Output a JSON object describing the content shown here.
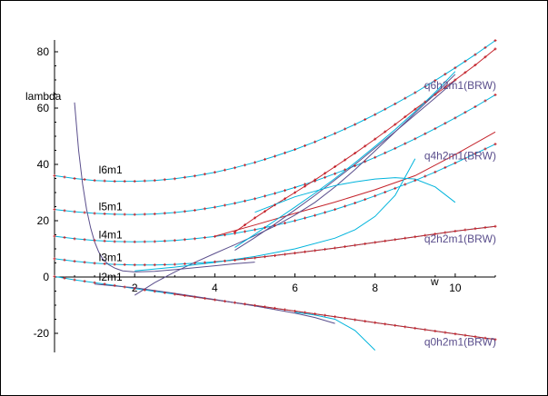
{
  "chart_data": {
    "type": "line",
    "title": "",
    "xlabel": "w",
    "ylabel": "lambda",
    "xlim": [
      0,
      11
    ],
    "ylim": [
      -25,
      85
    ],
    "x_ticks": [
      2,
      4,
      6,
      8,
      10
    ],
    "y_ticks": [
      -20,
      0,
      20,
      40,
      60,
      80
    ],
    "x_tick_labels": [
      "2",
      "4",
      "6",
      "8",
      "10"
    ],
    "y_tick_labels": [
      "-20",
      "0",
      "20",
      "40",
      "60",
      "80"
    ],
    "curve_labels": [
      {
        "text": "l6m1",
        "x": 0.65,
        "y": 38
      },
      {
        "text": "l5m1",
        "x": 0.65,
        "y": 25
      },
      {
        "text": "l4m1",
        "x": 0.65,
        "y": 15
      },
      {
        "text": "l3m1",
        "x": 0.65,
        "y": 7
      },
      {
        "text": "l2m1",
        "x": 0.65,
        "y": 0
      }
    ],
    "series_labels": [
      {
        "text": "q6h2m1(BRW)",
        "x": 9.0,
        "y": 68
      },
      {
        "text": "q4h2m1(BRW)",
        "x": 9.0,
        "y": 43
      },
      {
        "text": "q2h2m1(BRW)",
        "x": 9.0,
        "y": 13.5
      },
      {
        "text": "q0h2m1(BRW)",
        "x": 9.0,
        "y": -23
      }
    ],
    "series": [
      {
        "name": "l6m1",
        "color": "#00b4dc",
        "style": "line",
        "x": [
          0,
          0.5,
          1,
          1.5,
          2,
          2.5,
          3,
          3.5,
          4,
          4.5,
          5,
          5.5,
          6,
          6.5,
          7,
          7.5,
          8,
          8.5,
          9,
          9.5,
          10,
          10.5,
          11
        ],
        "y": [
          36.0,
          35.0,
          34.3,
          34.0,
          34.0,
          34.3,
          34.9,
          35.9,
          37.2,
          38.8,
          40.7,
          42.9,
          45.3,
          48.0,
          51.0,
          54.2,
          57.7,
          61.5,
          65.5,
          69.8,
          74.3,
          79.0,
          84.0
        ]
      },
      {
        "name": "l5m1",
        "color": "#00b4dc",
        "style": "line",
        "x": [
          0,
          0.5,
          1,
          1.5,
          2,
          2.5,
          3,
          3.5,
          4,
          4.5,
          5,
          5.5,
          6,
          6.5,
          7,
          7.5,
          8,
          8.5,
          9,
          9.5,
          10,
          10.5,
          11
        ],
        "y": [
          24.0,
          23.2,
          22.6,
          22.3,
          22.2,
          22.4,
          22.9,
          23.7,
          24.8,
          26.2,
          27.8,
          29.7,
          31.8,
          34.1,
          36.7,
          39.5,
          42.5,
          45.7,
          49.1,
          52.7,
          56.5,
          60.5,
          64.7
        ]
      },
      {
        "name": "l4m1",
        "color": "#00b4dc",
        "style": "line",
        "x": [
          0,
          0.5,
          1,
          1.5,
          2,
          2.5,
          3,
          3.5,
          4,
          4.5,
          5,
          5.5,
          6,
          6.5,
          7,
          7.5,
          8,
          8.5,
          9,
          9.5,
          10,
          10.5,
          11
        ],
        "y": [
          14.5,
          13.6,
          13.0,
          12.6,
          12.5,
          12.6,
          13.0,
          13.6,
          14.4,
          15.5,
          16.8,
          18.3,
          20.0,
          21.9,
          24.0,
          26.3,
          28.8,
          31.5,
          34.3,
          37.3,
          40.5,
          43.8,
          47.2
        ]
      },
      {
        "name": "l3m1",
        "color": "#00b4dc",
        "style": "line",
        "x": [
          0,
          0.5,
          1,
          1.5,
          2,
          2.5,
          3,
          3.5,
          4,
          4.5,
          5,
          5.5,
          6,
          6.5,
          7,
          7.5,
          8,
          8.5,
          9,
          9.5,
          10,
          10.5,
          11
        ],
        "y": [
          6.5,
          5.6,
          4.9,
          4.5,
          4.3,
          4.3,
          4.5,
          4.9,
          5.4,
          6.0,
          6.8,
          7.6,
          8.5,
          9.4,
          10.3,
          11.3,
          12.3,
          13.3,
          14.3,
          15.3,
          16.3,
          17.2,
          18.0
        ]
      },
      {
        "name": "l2m1",
        "color": "#00b4dc",
        "style": "line",
        "x": [
          0,
          0.5,
          1,
          1.5,
          2,
          2.5,
          3,
          3.5,
          4,
          4.5,
          5,
          5.5,
          6,
          6.5,
          7,
          7.5,
          8,
          8.5,
          9,
          9.5,
          10,
          10.5,
          11
        ],
        "y": [
          0.2,
          -1.0,
          -2.0,
          -3.0,
          -4.1,
          -5.1,
          -6.1,
          -7.1,
          -8.1,
          -9.1,
          -10.1,
          -11.1,
          -12.1,
          -13.1,
          -14.1,
          -15.2,
          -16.2,
          -17.2,
          -18.2,
          -19.2,
          -20.2,
          -21.2,
          -22.2
        ]
      },
      {
        "name": "q6h2m1(BRW)",
        "color": "#c4232b",
        "style": "line",
        "x": [
          4.5,
          5,
          5.5,
          6,
          6.5,
          7,
          7.5,
          8,
          8.5,
          9,
          9.5,
          10,
          10.5,
          11
        ],
        "y": [
          16,
          21,
          25.6,
          30.0,
          34.5,
          39.2,
          44.0,
          49.0,
          54.2,
          59.6,
          64.8,
          70.0,
          75.3,
          81.0
        ]
      },
      {
        "name": "q4h2m1(BRW)",
        "color": "#c4232b",
        "style": "line",
        "x": [
          4,
          5,
          6,
          7,
          8,
          9,
          10,
          11
        ],
        "y": [
          14.5,
          18.5,
          22.6,
          26.6,
          31.0,
          36.0,
          43.5,
          51.5
        ]
      },
      {
        "name": "q2h2m1(BRW)",
        "color": "#c4232b",
        "style": "line",
        "x": [
          4,
          5,
          6,
          7,
          8,
          9,
          10,
          11
        ],
        "y": [
          5.4,
          6.8,
          8.5,
          10.3,
          12.3,
          14.3,
          16.3,
          18.0
        ]
      },
      {
        "name": "q0h2m1(BRW)",
        "color": "#c4232b",
        "style": "line",
        "x": [
          3,
          4,
          5,
          6,
          7,
          8,
          9,
          10,
          11
        ],
        "y": [
          -6.1,
          -8.1,
          -10.1,
          -12.1,
          -14.1,
          -16.2,
          -18.2,
          -20.2,
          -22.2
        ]
      },
      {
        "name": "",
        "color": "#5a4e8c",
        "style": "line",
        "x": [
          0.5,
          0.6,
          0.7,
          0.8,
          0.9,
          1.0,
          1.1,
          1.2,
          1.35,
          1.5,
          1.7,
          2.0,
          2.5,
          3,
          3.5,
          4,
          4.5,
          5
        ],
        "y": [
          62,
          45,
          33,
          24,
          17.5,
          12.5,
          9.0,
          6.5,
          4.4,
          3.2,
          2.2,
          1.8,
          2.0,
          2.6,
          3.3,
          4.0,
          4.7,
          5.3
        ]
      },
      {
        "name": "",
        "color": "#5a4e8c",
        "style": "line",
        "x": [
          2,
          2.5,
          3,
          3.5,
          4,
          4.5,
          5,
          5.5,
          6,
          6.5,
          7,
          7.5,
          8,
          8.5,
          9,
          9.5,
          10
        ],
        "y": [
          -6.5,
          -2.0,
          1.8,
          5.2,
          8.4,
          11.5,
          14.7,
          18.1,
          22.0,
          26.5,
          32.0,
          38.2,
          44.8,
          51.5,
          58.3,
          65.0,
          72.0
        ]
      },
      {
        "name": "",
        "color": "#5a4e8c",
        "style": "line",
        "x": [
          4.5,
          5,
          5.5,
          6,
          6.5,
          7,
          7.5,
          8,
          8.5,
          9,
          9.5,
          10
        ],
        "y": [
          9.5,
          14.0,
          18.8,
          23.8,
          29.0,
          34.5,
          40.0,
          45.8,
          51.6,
          57.6,
          63.6,
          69.8
        ]
      },
      {
        "name": "",
        "color": "#5a4e8c",
        "style": "line",
        "x": [
          1,
          2,
          3,
          4,
          5,
          6,
          6.5,
          7
        ],
        "y": [
          -2.5,
          -3.8,
          -5.8,
          -8.0,
          -10.3,
          -12.8,
          -14.4,
          -16.5
        ]
      },
      {
        "name": "",
        "color": "#00b4dc",
        "style": "line",
        "x": [
          2,
          3,
          4,
          5,
          6,
          7,
          7.5,
          8,
          8.5,
          9
        ],
        "y": [
          2.2,
          3.5,
          5.2,
          7.3,
          10.0,
          13.8,
          16.8,
          21.5,
          29.0,
          42.0
        ]
      },
      {
        "name": "",
        "color": "#00b4dc",
        "style": "line",
        "x": [
          5,
          6,
          7,
          7.5,
          8,
          8.5,
          9,
          9.5,
          10
        ],
        "y": [
          23.0,
          28.5,
          32.5,
          33.8,
          34.8,
          35.3,
          34.8,
          32.0,
          26.5
        ]
      },
      {
        "name": "",
        "color": "#00b4dc",
        "style": "line",
        "x": [
          6,
          6.5,
          7,
          7.5,
          8
        ],
        "y": [
          -12.5,
          -13.5,
          -15.0,
          -19.0,
          -26.0
        ]
      },
      {
        "name": "",
        "color": "#00b4dc",
        "style": "line",
        "x": [
          4.5,
          5,
          5.5,
          6,
          6.5,
          7,
          7.5,
          8,
          8.5,
          9,
          9.5,
          10
        ],
        "y": [
          10.5,
          15.2,
          20.0,
          24.8,
          29.8,
          35.0,
          40.6,
          46.4,
          52.4,
          58.8,
          65.6,
          73.0
        ]
      }
    ]
  }
}
